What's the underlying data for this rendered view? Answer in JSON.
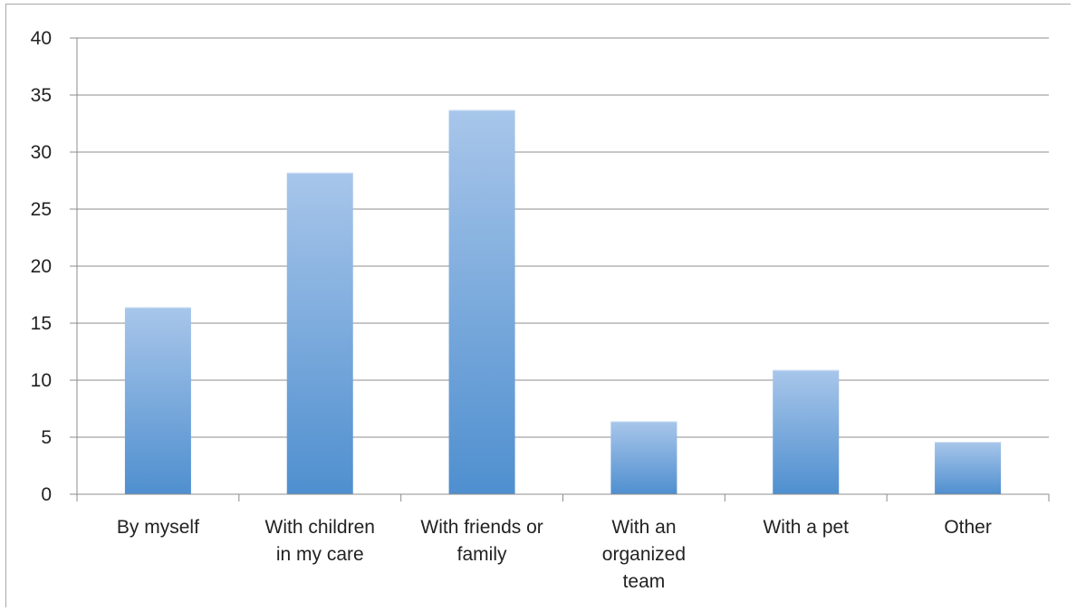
{
  "chart_data": {
    "type": "bar",
    "categories": [
      [
        "By myself"
      ],
      [
        "With children",
        "in my care"
      ],
      [
        "With friends or",
        "family"
      ],
      [
        "With an",
        "organized",
        "team"
      ],
      [
        "With a pet"
      ],
      [
        "Other"
      ]
    ],
    "values": [
      16.4,
      28.2,
      33.7,
      6.4,
      10.9,
      4.6
    ],
    "ylim": [
      0,
      40
    ],
    "yticks": [
      0,
      5,
      10,
      15,
      20,
      25,
      30,
      35,
      40
    ],
    "title": "",
    "xlabel": "",
    "ylabel": "",
    "grid": true,
    "legend": "none",
    "colors": {
      "bar_top": "#a8c6ea",
      "bar_bottom": "#4f8fcf",
      "grid": "#8c8c8c",
      "axis": "#8c8c8c"
    }
  }
}
